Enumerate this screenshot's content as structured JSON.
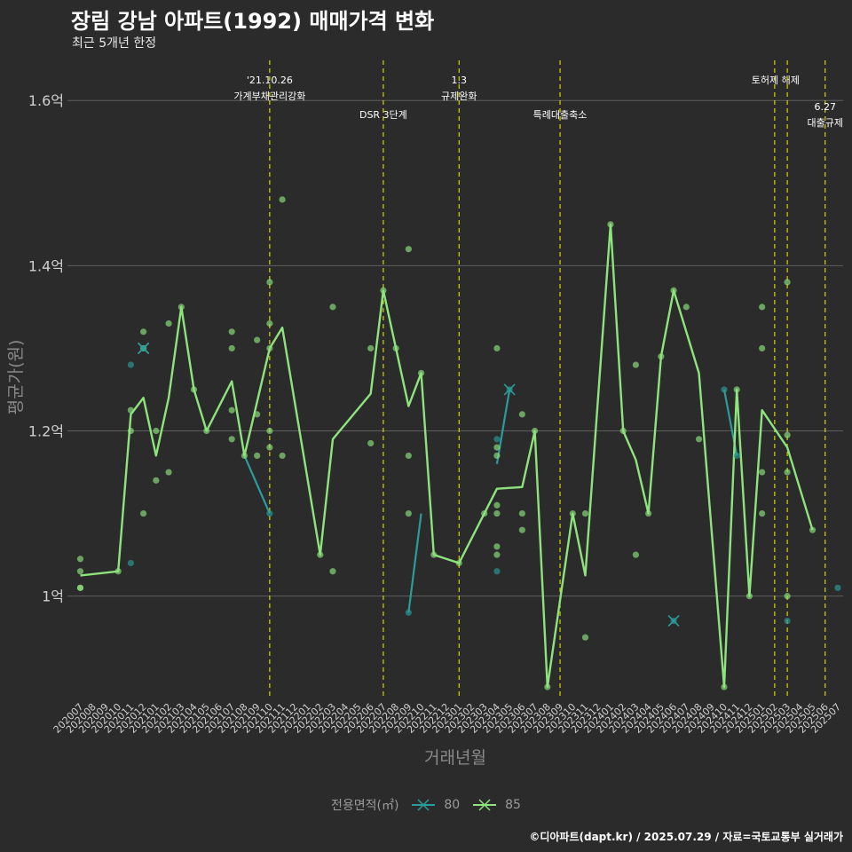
{
  "title": "장림 강남 아파트(1992) 매매가격 변화",
  "subtitle": "최근 5개년 한정",
  "caption": "©디아파트(dapt.kr) / 2025.07.29 / 자료=국토교통부 실거래가",
  "legend": {
    "title": "전용면적(㎡)",
    "items": [
      "80",
      "85"
    ]
  },
  "colors": {
    "background": "#2b2b2b",
    "grid": "#5e5e5e",
    "series80": "#2a9d9a",
    "series85": "#8ee37d",
    "event_line": "#e3e300"
  },
  "chart_data": {
    "type": "line",
    "xlabel": "거래년월",
    "ylabel": "평균가(원)",
    "ylim": [
      0.875,
      1.655
    ],
    "y_ticks": [
      1.0,
      1.2,
      1.4,
      1.6
    ],
    "y_tick_labels": [
      "1억",
      "1.2억",
      "1.4억",
      "1.6억"
    ],
    "grid": "horizontal",
    "legend_position": "bottom",
    "categories": [
      "202007",
      "202008",
      "202009",
      "202010",
      "202011",
      "202012",
      "202101",
      "202102",
      "202103",
      "202104",
      "202105",
      "202106",
      "202107",
      "202108",
      "202109",
      "202110",
      "202111",
      "202112",
      "202201",
      "202202",
      "202203",
      "202204",
      "202205",
      "202206",
      "202207",
      "202208",
      "202209",
      "202210",
      "202211",
      "202212",
      "202301",
      "202302",
      "202303",
      "202304",
      "202305",
      "202306",
      "202307",
      "202308",
      "202309",
      "202310",
      "202311",
      "202312",
      "202401",
      "202402",
      "202403",
      "202404",
      "202405",
      "202406",
      "202407",
      "202408",
      "202409",
      "202410",
      "202411",
      "202412",
      "202501",
      "202502",
      "202503",
      "202504",
      "202505",
      "202506",
      "202507"
    ],
    "series": [
      {
        "name": "80",
        "lines": [
          [
            [
              "202108",
              1.17
            ],
            [
              "202110",
              1.1
            ]
          ],
          [
            [
              "202209",
              0.98
            ],
            [
              "202210",
              1.1
            ]
          ],
          [
            [
              "202304",
              1.16
            ],
            [
              "202305",
              1.25
            ]
          ],
          [
            [
              "202410",
              1.25
            ],
            [
              "202411",
              1.17
            ]
          ]
        ],
        "points": [
          [
            "202011",
            1.28
          ],
          [
            "202011",
            1.04
          ],
          [
            "202012",
            1.3
          ],
          [
            "202110",
            1.1
          ],
          [
            "202209",
            0.98
          ],
          [
            "202304",
            1.03
          ],
          [
            "202304",
            1.19
          ],
          [
            "202305",
            1.25
          ],
          [
            "202406",
            0.97
          ],
          [
            "202410",
            1.25
          ],
          [
            "202411",
            1.17
          ],
          [
            "202503",
            0.97
          ],
          [
            "202507",
            1.01
          ]
        ],
        "cross_marks": [
          [
            "202012",
            1.3
          ],
          [
            "202305",
            1.25
          ],
          [
            "202406",
            0.97
          ]
        ]
      },
      {
        "name": "85",
        "line": [
          [
            "202007",
            1.025
          ],
          [
            "202010",
            1.03
          ],
          [
            "202011",
            1.22
          ],
          [
            "202012",
            1.24
          ],
          [
            "202101",
            1.17
          ],
          [
            "202102",
            1.24
          ],
          [
            "202103",
            1.35
          ],
          [
            "202104",
            1.25
          ],
          [
            "202105",
            1.2
          ],
          [
            "202107",
            1.26
          ],
          [
            "202108",
            1.17
          ],
          [
            "202110",
            1.3
          ],
          [
            "202111",
            1.325
          ],
          [
            "202202",
            1.05
          ],
          [
            "202203",
            1.19
          ],
          [
            "202206",
            1.245
          ],
          [
            "202207",
            1.37
          ],
          [
            "202208",
            1.3
          ],
          [
            "202209",
            1.23
          ],
          [
            "202210",
            1.27
          ],
          [
            "202211",
            1.05
          ],
          [
            "202301",
            1.04
          ],
          [
            "202304",
            1.13
          ],
          [
            "202306",
            1.132
          ],
          [
            "202307",
            1.2
          ],
          [
            "202308",
            0.89
          ],
          [
            "202310",
            1.1
          ],
          [
            "202311",
            1.025
          ],
          [
            "202401",
            1.45
          ],
          [
            "202402",
            1.2
          ],
          [
            "202403",
            1.165
          ],
          [
            "202404",
            1.1
          ],
          [
            "202405",
            1.29
          ],
          [
            "202406",
            1.37
          ],
          [
            "202408",
            1.27
          ],
          [
            "202410",
            0.89
          ],
          [
            "202411",
            1.25
          ],
          [
            "202412",
            1.0
          ],
          [
            "202501",
            1.225
          ],
          [
            "202503",
            1.18
          ],
          [
            "202505",
            1.08
          ]
        ],
        "points": [
          [
            "202007",
            1.045
          ],
          [
            "202007",
            1.03
          ],
          [
            "202007",
            1.01
          ],
          [
            "202007",
            1.01
          ],
          [
            "202010",
            1.03
          ],
          [
            "202011",
            1.225
          ],
          [
            "202011",
            1.2
          ],
          [
            "202012",
            1.32
          ],
          [
            "202012",
            1.3
          ],
          [
            "202012",
            1.1
          ],
          [
            "202101",
            1.2
          ],
          [
            "202101",
            1.14
          ],
          [
            "202102",
            1.33
          ],
          [
            "202102",
            1.15
          ],
          [
            "202103",
            1.35
          ],
          [
            "202104",
            1.25
          ],
          [
            "202105",
            1.2
          ],
          [
            "202107",
            1.32
          ],
          [
            "202107",
            1.3
          ],
          [
            "202107",
            1.225
          ],
          [
            "202107",
            1.19
          ],
          [
            "202108",
            1.17
          ],
          [
            "202109",
            1.31
          ],
          [
            "202109",
            1.22
          ],
          [
            "202109",
            1.17
          ],
          [
            "202110",
            1.38
          ],
          [
            "202110",
            1.33
          ],
          [
            "202110",
            1.3
          ],
          [
            "202110",
            1.2
          ],
          [
            "202110",
            1.18
          ],
          [
            "202111",
            1.48
          ],
          [
            "202111",
            1.17
          ],
          [
            "202202",
            1.05
          ],
          [
            "202203",
            1.35
          ],
          [
            "202203",
            1.03
          ],
          [
            "202206",
            1.3
          ],
          [
            "202206",
            1.185
          ],
          [
            "202207",
            1.37
          ],
          [
            "202208",
            1.3
          ],
          [
            "202209",
            1.42
          ],
          [
            "202209",
            1.17
          ],
          [
            "202209",
            1.1
          ],
          [
            "202210",
            1.27
          ],
          [
            "202211",
            1.05
          ],
          [
            "202301",
            1.04
          ],
          [
            "202303",
            1.1
          ],
          [
            "202304",
            1.3
          ],
          [
            "202304",
            1.18
          ],
          [
            "202304",
            1.17
          ],
          [
            "202304",
            1.11
          ],
          [
            "202304",
            1.1
          ],
          [
            "202304",
            1.06
          ],
          [
            "202304",
            1.05
          ],
          [
            "202306",
            1.22
          ],
          [
            "202306",
            1.1
          ],
          [
            "202306",
            1.08
          ],
          [
            "202307",
            1.2
          ],
          [
            "202308",
            0.89
          ],
          [
            "202310",
            1.1
          ],
          [
            "202311",
            1.1
          ],
          [
            "202311",
            0.95
          ],
          [
            "202401",
            1.45
          ],
          [
            "202402",
            1.2
          ],
          [
            "202403",
            1.28
          ],
          [
            "202403",
            1.05
          ],
          [
            "202404",
            1.1
          ],
          [
            "202405",
            1.29
          ],
          [
            "202406",
            1.37
          ],
          [
            "202407",
            1.35
          ],
          [
            "202408",
            1.19
          ],
          [
            "202410",
            0.89
          ],
          [
            "202411",
            1.25
          ],
          [
            "202412",
            1.0
          ],
          [
            "202501",
            1.35
          ],
          [
            "202501",
            1.3
          ],
          [
            "202501",
            1.15
          ],
          [
            "202501",
            1.1
          ],
          [
            "202503",
            1.38
          ],
          [
            "202503",
            1.195
          ],
          [
            "202503",
            1.15
          ],
          [
            "202503",
            1.0
          ],
          [
            "202505",
            1.08
          ]
        ],
        "cross_marks": [
          [
            "202012",
            1.3
          ]
        ]
      }
    ],
    "event_lines": [
      {
        "x": "202110",
        "label": [
          "'21.10.26",
          "가계부채관리강화"
        ],
        "label_row": 0
      },
      {
        "x": "202207",
        "label": [
          "DSR 3단계"
        ],
        "label_row": 1
      },
      {
        "x": "202301",
        "label": [
          "1.3",
          "규제완화"
        ],
        "label_row": 0
      },
      {
        "x": "202309",
        "label": [
          "특례대출축소"
        ],
        "label_row": 1
      },
      {
        "x": "202502",
        "label": [
          "토허제 해제"
        ],
        "label_row": 0,
        "label_anchor": "end"
      },
      {
        "x": "202503",
        "label": [],
        "label_row": 0
      },
      {
        "x": "202506",
        "label": [
          "6.27",
          "대출규제"
        ],
        "label_row": 2
      }
    ]
  }
}
